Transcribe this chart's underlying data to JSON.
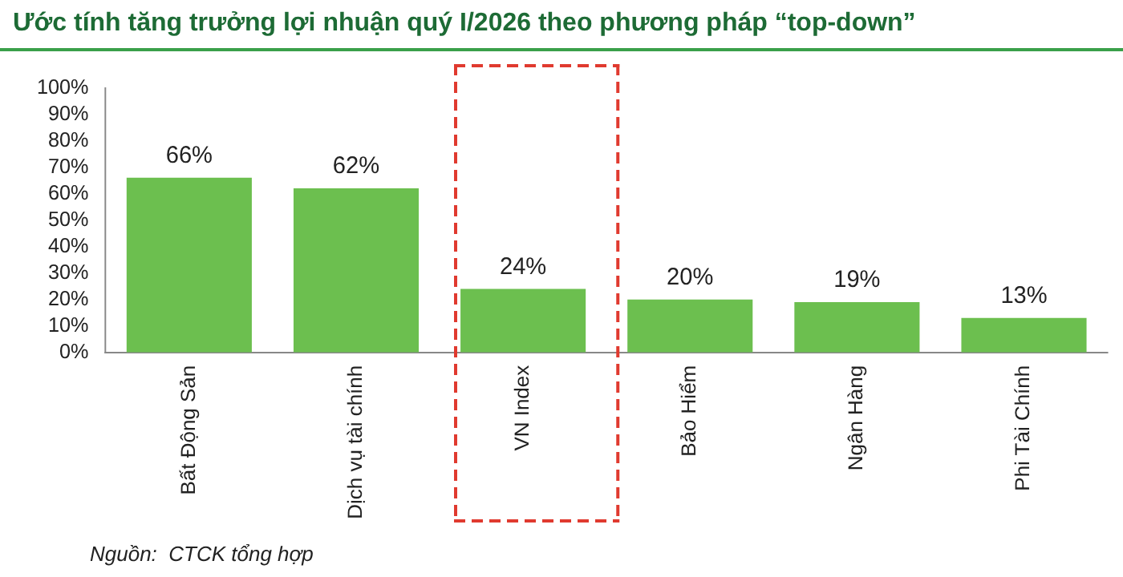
{
  "chart_data": {
    "type": "bar",
    "title": "Ước tính tăng trưởng lợi nhuận quý I/2026 theo phương pháp “top-down”",
    "categories": [
      "Bất Động Sản",
      "Dịch vụ tài chính",
      "VN Index",
      "Bảo Hiểm",
      "Ngân Hàng",
      "Phi Tài Chính"
    ],
    "values": [
      66,
      62,
      24,
      20,
      19,
      13
    ],
    "value_labels": [
      "66%",
      "62%",
      "24%",
      "20%",
      "19%",
      "13%"
    ],
    "color": "#6cbf4f",
    "ylim": [
      0,
      100
    ],
    "yticks": [
      {
        "value": 0,
        "label": "0%"
      },
      {
        "value": 10,
        "label": "10%"
      },
      {
        "value": 20,
        "label": "20%"
      },
      {
        "value": 30,
        "label": "30%"
      },
      {
        "value": 40,
        "label": "40%"
      },
      {
        "value": 50,
        "label": "50%"
      },
      {
        "value": 60,
        "label": "60%"
      },
      {
        "value": 70,
        "label": "70%"
      },
      {
        "value": 80,
        "label": "80%"
      },
      {
        "value": 90,
        "label": "90%"
      },
      {
        "value": 100,
        "label": "100%"
      }
    ],
    "grid": false,
    "legend": false,
    "annotations": [
      "Nguồn:  CTCK tổng hợp"
    ]
  }
}
